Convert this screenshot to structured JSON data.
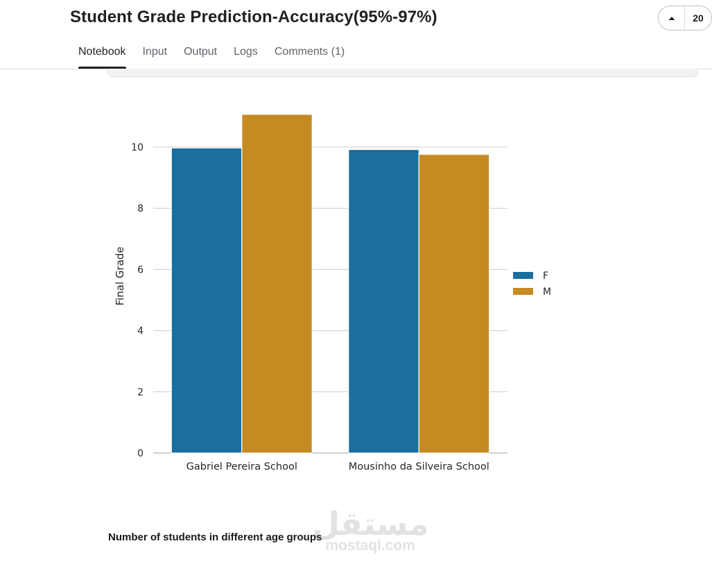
{
  "notebook": {
    "title": "Student Grade Prediction-Accuracy(95%-97%)"
  },
  "vote": {
    "count": "20",
    "icon": "caret-up-icon"
  },
  "tabs": [
    {
      "label": "Notebook",
      "active": true
    },
    {
      "label": "Input",
      "active": false
    },
    {
      "label": "Output",
      "active": false
    },
    {
      "label": "Logs",
      "active": false
    },
    {
      "label": "Comments (1)",
      "active": false
    }
  ],
  "chart_data": {
    "type": "bar",
    "title": "",
    "xlabel": "",
    "ylabel": "Final Grade",
    "categories": [
      "Gabriel Pereira School",
      "Mousinho da Silveira School"
    ],
    "series": [
      {
        "name": "F",
        "values": [
          9.97,
          9.92
        ],
        "color": "#1a6f9e"
      },
      {
        "name": "M",
        "values": [
          11.07,
          9.76
        ],
        "color": "#c58a21"
      }
    ],
    "ylim": [
      0,
      11.3
    ],
    "yticks": [
      0,
      2,
      4,
      6,
      8,
      10
    ],
    "grid": true,
    "legend_position": "center-right"
  },
  "markdown": {
    "heading": "Number of students in different age groups"
  },
  "watermark": {
    "arabic": "مستقل",
    "latin": "mostaql.com"
  }
}
